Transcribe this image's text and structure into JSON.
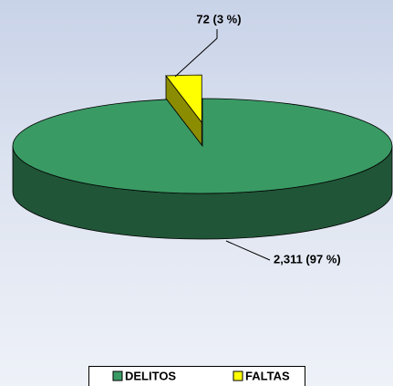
{
  "chart_data": {
    "type": "pie",
    "categories": [
      "DELITOS",
      "FALTAS"
    ],
    "values": [
      2311,
      72
    ],
    "value_labels": [
      "2,311 (97 %)",
      "72 (3 %)"
    ],
    "colors": [
      "#3a9a64",
      "#ffff00"
    ],
    "legend": "bottom"
  }
}
